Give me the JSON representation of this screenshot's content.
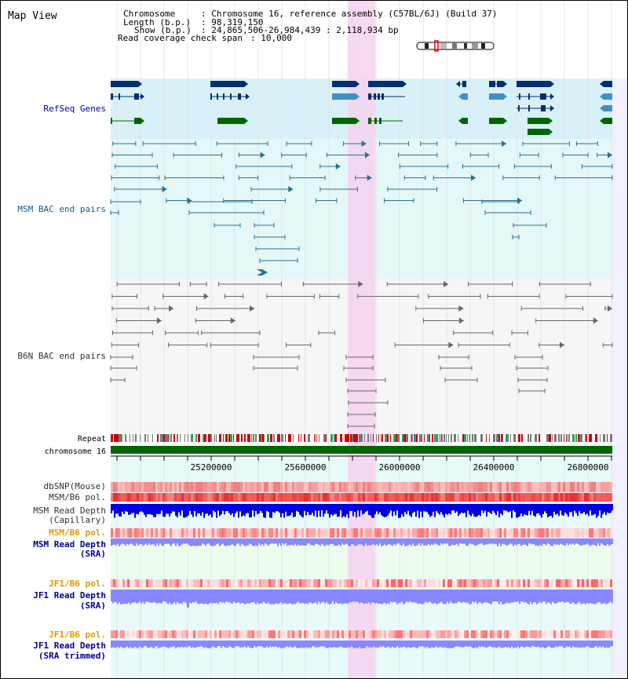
{
  "title": "Map View",
  "info": {
    "chromosome_key": "Chromosome",
    "chromosome_val": ": Chromosome 16, reference assembly (C57BL/6J) (Build 37)",
    "length_key": "Length (b.p.)",
    "length_val": ": 98,319,150",
    "show_key": "Show (b.p.)",
    "show_val": ": 24,865,506-26,984,439 : 2,118,934 bp",
    "coverage_key": "Read coverage check span",
    "coverage_val": ": 10,000"
  },
  "tracks": {
    "refseq": "RefSeq Genes",
    "msm_bac": "MSM BAC end pairs",
    "b6n_bac": "B6N BAC end pairs",
    "repeat": "Repeat",
    "chromosome": "chromosome 16",
    "dbsnp": "dbSNP(Mouse)",
    "msm_b6_pol_1": "MSM/B6 pol.",
    "msm_depth_cap_1": "MSM Read Depth",
    "msm_depth_cap_2": "(Capillary)",
    "msm_b6_pol_2": "MSM/B6 pol.",
    "msm_depth_sra_1": "MSM Read Depth",
    "msm_depth_sra_2": "(SRA)",
    "jf1_pol_1": "JF1/B6 pol.",
    "jf1_depth_sra_1": "JF1 Read Depth",
    "jf1_depth_sra_2": "(SRA)",
    "jf1_pol_2": "JF1/B6 pol.",
    "jf1_depth_trim_1": "JF1 Read Depth",
    "jf1_depth_trim_2": "(SRA trimmed)"
  },
  "ruler": {
    "ticks": [
      "25200000",
      "25600000",
      "26000000",
      "26400000",
      "26800000"
    ]
  },
  "colors": {
    "highlight": "#f6d2f0",
    "refseq_bg": "#d8f0f8",
    "msm_bg": "#e4f8f8",
    "b6n_bg": "#f6f6f6",
    "data_bg": "#e8fafa",
    "gene_dark": "#003070",
    "gene_mid": "#4090c0",
    "gene_green": "#006600",
    "msm_bac": "#2a7090",
    "b6n_bac": "#666666",
    "repeat_red": "#cc0000",
    "repeat_gray": "#777777",
    "chrom_green": "#006600",
    "depth_cap": "#0000dd",
    "depth_sra": "#8888ff",
    "label_blue": "#000099",
    "label_orange": "#dd9900",
    "label_gray": "#333333"
  }
}
